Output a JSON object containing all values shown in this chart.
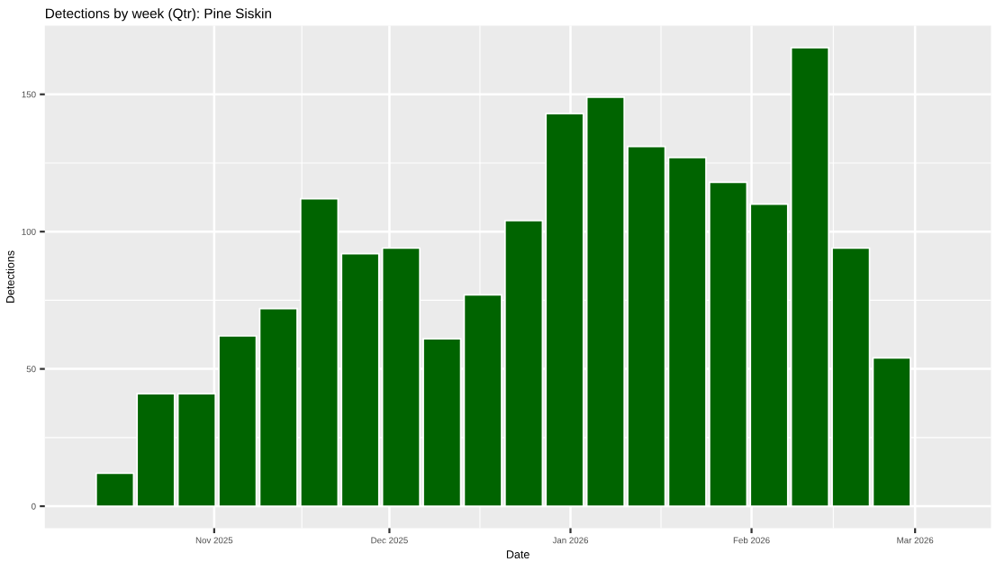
{
  "chart_data": {
    "type": "bar",
    "title": "Detections by week (Qtr): Pine Siskin",
    "xlabel": "Date",
    "ylabel": "Detections",
    "x": [
      "2025-10-15",
      "2025-10-22",
      "2025-10-29",
      "2025-11-05",
      "2025-11-12",
      "2025-11-19",
      "2025-11-26",
      "2025-12-03",
      "2025-12-10",
      "2025-12-17",
      "2025-12-24",
      "2025-12-31",
      "2026-01-07",
      "2026-01-14",
      "2026-01-21",
      "2026-01-28",
      "2026-02-04",
      "2026-02-11",
      "2026-02-18",
      "2026-02-25"
    ],
    "values": [
      12,
      41,
      41,
      62,
      72,
      112,
      92,
      94,
      61,
      77,
      104,
      143,
      149,
      131,
      127,
      118,
      110,
      167,
      94,
      54
    ],
    "color": "#006400",
    "xlim": [
      "2025-10-03",
      "2026-03-14"
    ],
    "xticks": [
      {
        "value": "2025-11-01",
        "label": "Nov 2025"
      },
      {
        "value": "2025-12-01",
        "label": "Dec 2025"
      },
      {
        "value": "2026-01-01",
        "label": "Jan 2026"
      },
      {
        "value": "2026-02-01",
        "label": "Feb 2026"
      },
      {
        "value": "2026-03-01",
        "label": "Mar 2026"
      }
    ],
    "ylim": [
      -8,
      175
    ],
    "yticks": [
      0,
      50,
      100,
      150
    ],
    "grid": true
  }
}
